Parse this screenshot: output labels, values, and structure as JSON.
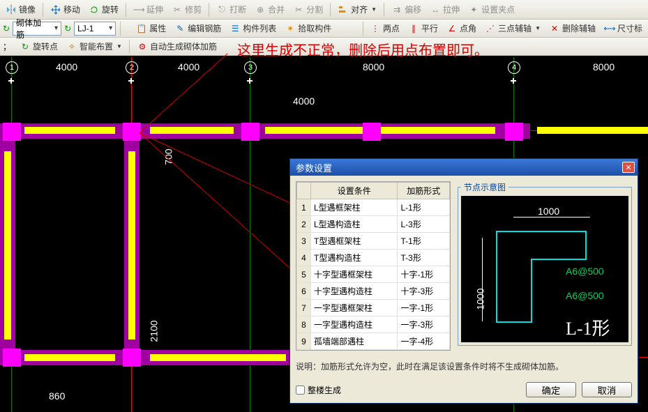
{
  "toolbar1": {
    "mirror": "镜像",
    "move": "移动",
    "rotate": "旋转",
    "extend": "延伸",
    "trim": "修剪",
    "break": "打断",
    "merge": "合并",
    "split": "分割",
    "align": "对齐",
    "offset": "偏移",
    "stretch": "拉伸",
    "setgrip": "设置夹点"
  },
  "toolbar2": {
    "type_label": "砌体加筋",
    "code": "LJ-1",
    "props": "属性",
    "editrebar": "编辑钢筋",
    "memberlist": "构件列表",
    "pickmember": "拾取构件",
    "twopt": "两点",
    "parallel": "平行",
    "dotangle": "点角",
    "threeaux": "三点辅轴",
    "delaux": "删除辅轴",
    "dimmark": "尺寸标"
  },
  "toolbar3": {
    "rotpt": "旋转点",
    "smartlayout": "智能布置",
    "autogen": "自动生成砌体加筋"
  },
  "annotation": "这里生成不正常，删除后用点布置即可。",
  "cad": {
    "axis_numbers": [
      "1",
      "2",
      "3",
      "4"
    ],
    "h_dims": [
      "4000",
      "4000",
      "8000",
      "8000"
    ],
    "inner_dim": "4000",
    "v_dim_700": "700",
    "v_dim_2100": "2100",
    "b_dim_860": "860",
    "axis_x": [
      16,
      188,
      358,
      736
    ],
    "grid_red_y": [
      105,
      430
    ],
    "colors": {
      "wall": "#a000a0",
      "highlight": "#ffff00",
      "col": "#ff00ff",
      "grid": "#008000",
      "gridred": "#ff0000"
    }
  },
  "dialog": {
    "title": "参数设置",
    "cols": [
      "设置条件",
      "加筋形式"
    ],
    "rows": [
      [
        "1",
        "L型遇框架柱",
        "L-1形"
      ],
      [
        "2",
        "L型遇构造柱",
        "L-3形"
      ],
      [
        "3",
        "T型遇框架柱",
        "T-1形"
      ],
      [
        "4",
        "T型遇构造柱",
        "T-3形"
      ],
      [
        "5",
        "十字型遇框架柱",
        "十字-1形"
      ],
      [
        "6",
        "十字型遇构造柱",
        "十字-3形"
      ],
      [
        "7",
        "一字型遇框架柱",
        "一字-1形"
      ],
      [
        "8",
        "一字型遇构造柱",
        "一字-3形"
      ],
      [
        "9",
        "孤墙端部遇柱",
        "一字-4形"
      ]
    ],
    "preview_title": "节点示意图",
    "pv_dim_h": "1000",
    "pv_dim_v": "1000",
    "pv_bar1": "A6@500",
    "pv_bar2": "A6@500",
    "pv_shape": "L-1形",
    "explain": "说明：加筋形式允许为空，此时在满足该设置条件时将不生成砌体加筋。",
    "chk": "整楼生成",
    "ok": "确定",
    "cancel": "取消"
  }
}
